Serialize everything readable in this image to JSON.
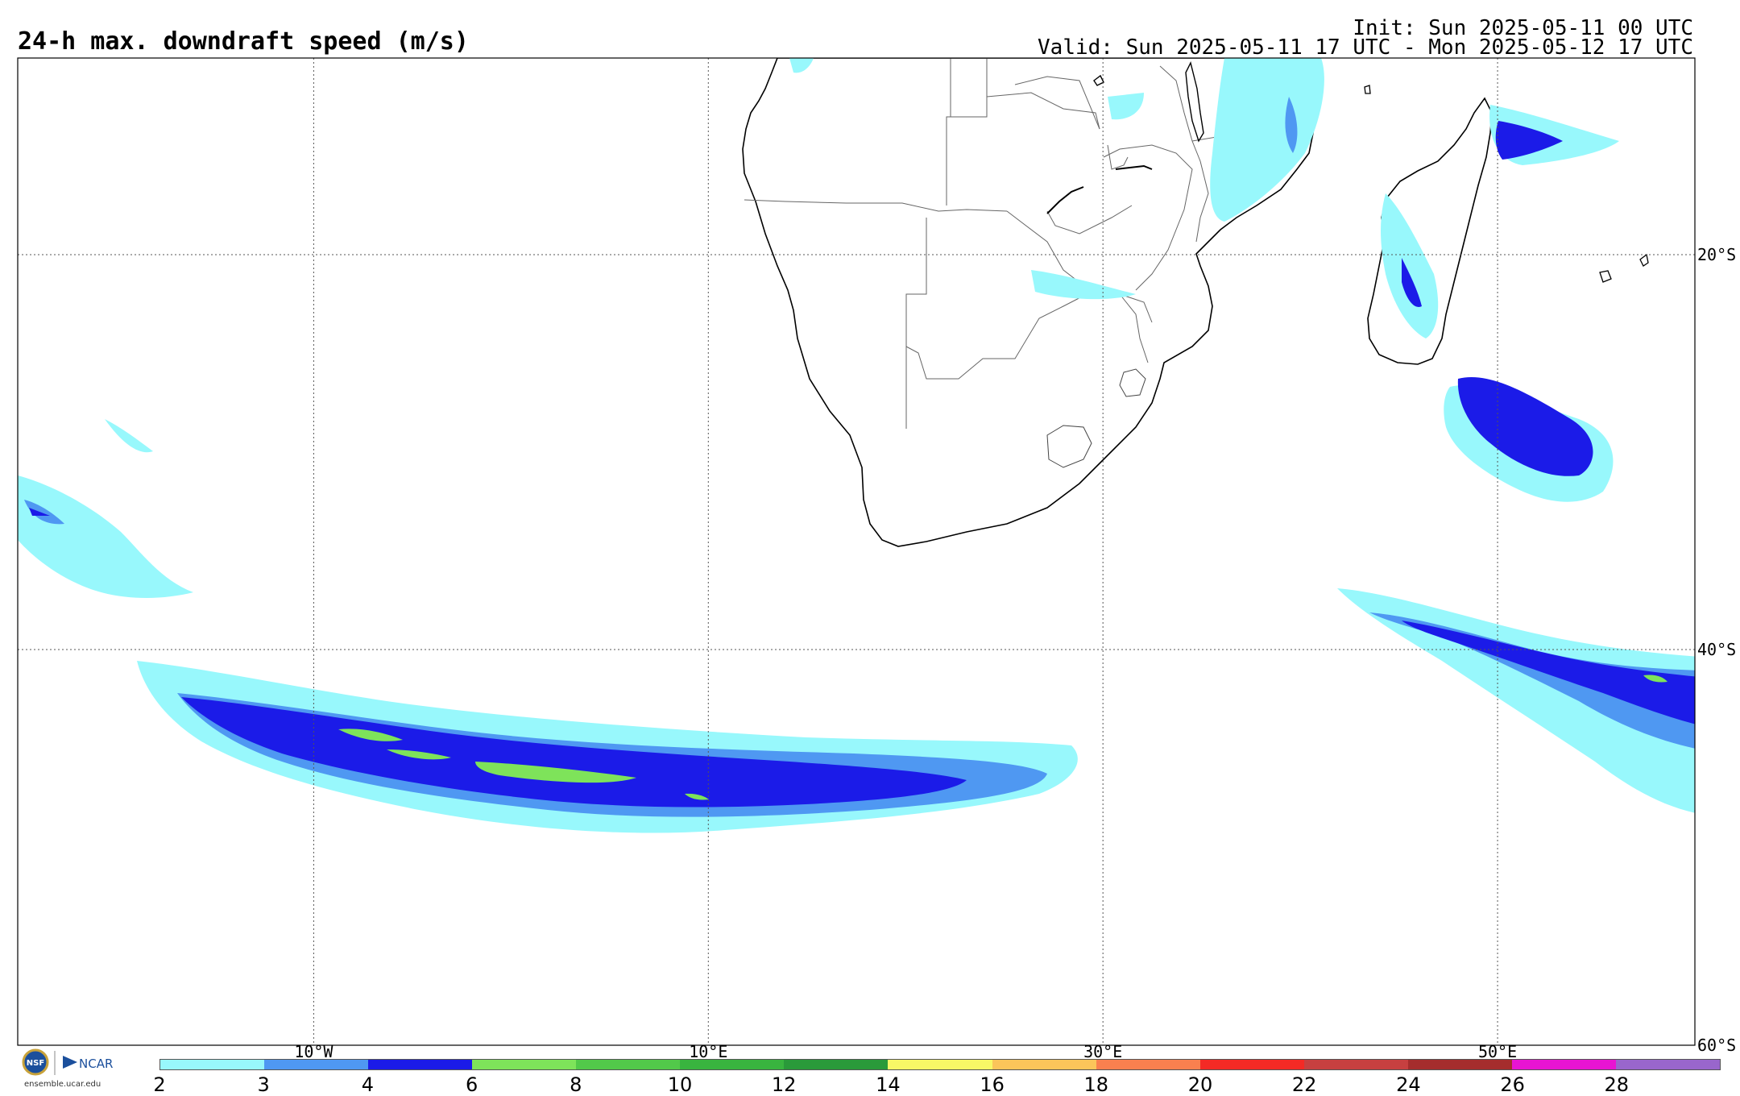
{
  "header": {
    "title": "24-h max. downdraft speed (m/s)",
    "init": "Init: Sun 2025-05-11 00 UTC",
    "valid": "Valid: Sun 2025-05-11 17 UTC - Mon 2025-05-12 17 UTC"
  },
  "map": {
    "lon_range": [
      -25,
      60
    ],
    "lat_range": [
      -60,
      -10
    ],
    "lon_labels": [
      "10°W",
      "10°E",
      "30°E",
      "50°E"
    ],
    "lat_labels": [
      "20°S",
      "40°S",
      "60°S"
    ]
  },
  "colorbar": {
    "ticks": [
      "2",
      "3",
      "4",
      "6",
      "8",
      "10",
      "12",
      "14",
      "16",
      "18",
      "20",
      "22",
      "24",
      "26",
      "28"
    ],
    "colors": [
      "#98f8fc",
      "#4f98f2",
      "#1b1be8",
      "#7ee35a",
      "#52c94a",
      "#39b43f",
      "#2a9a3a",
      "#f8f866",
      "#fbc55a",
      "#f9804f",
      "#f42a25",
      "#c74040",
      "#a52d2d",
      "#e814d2",
      "#9966cc"
    ]
  },
  "branding": {
    "site": "ensemble.ucar.edu",
    "logo_nsf": "NSF",
    "logo_ncar": "NCAR"
  }
}
